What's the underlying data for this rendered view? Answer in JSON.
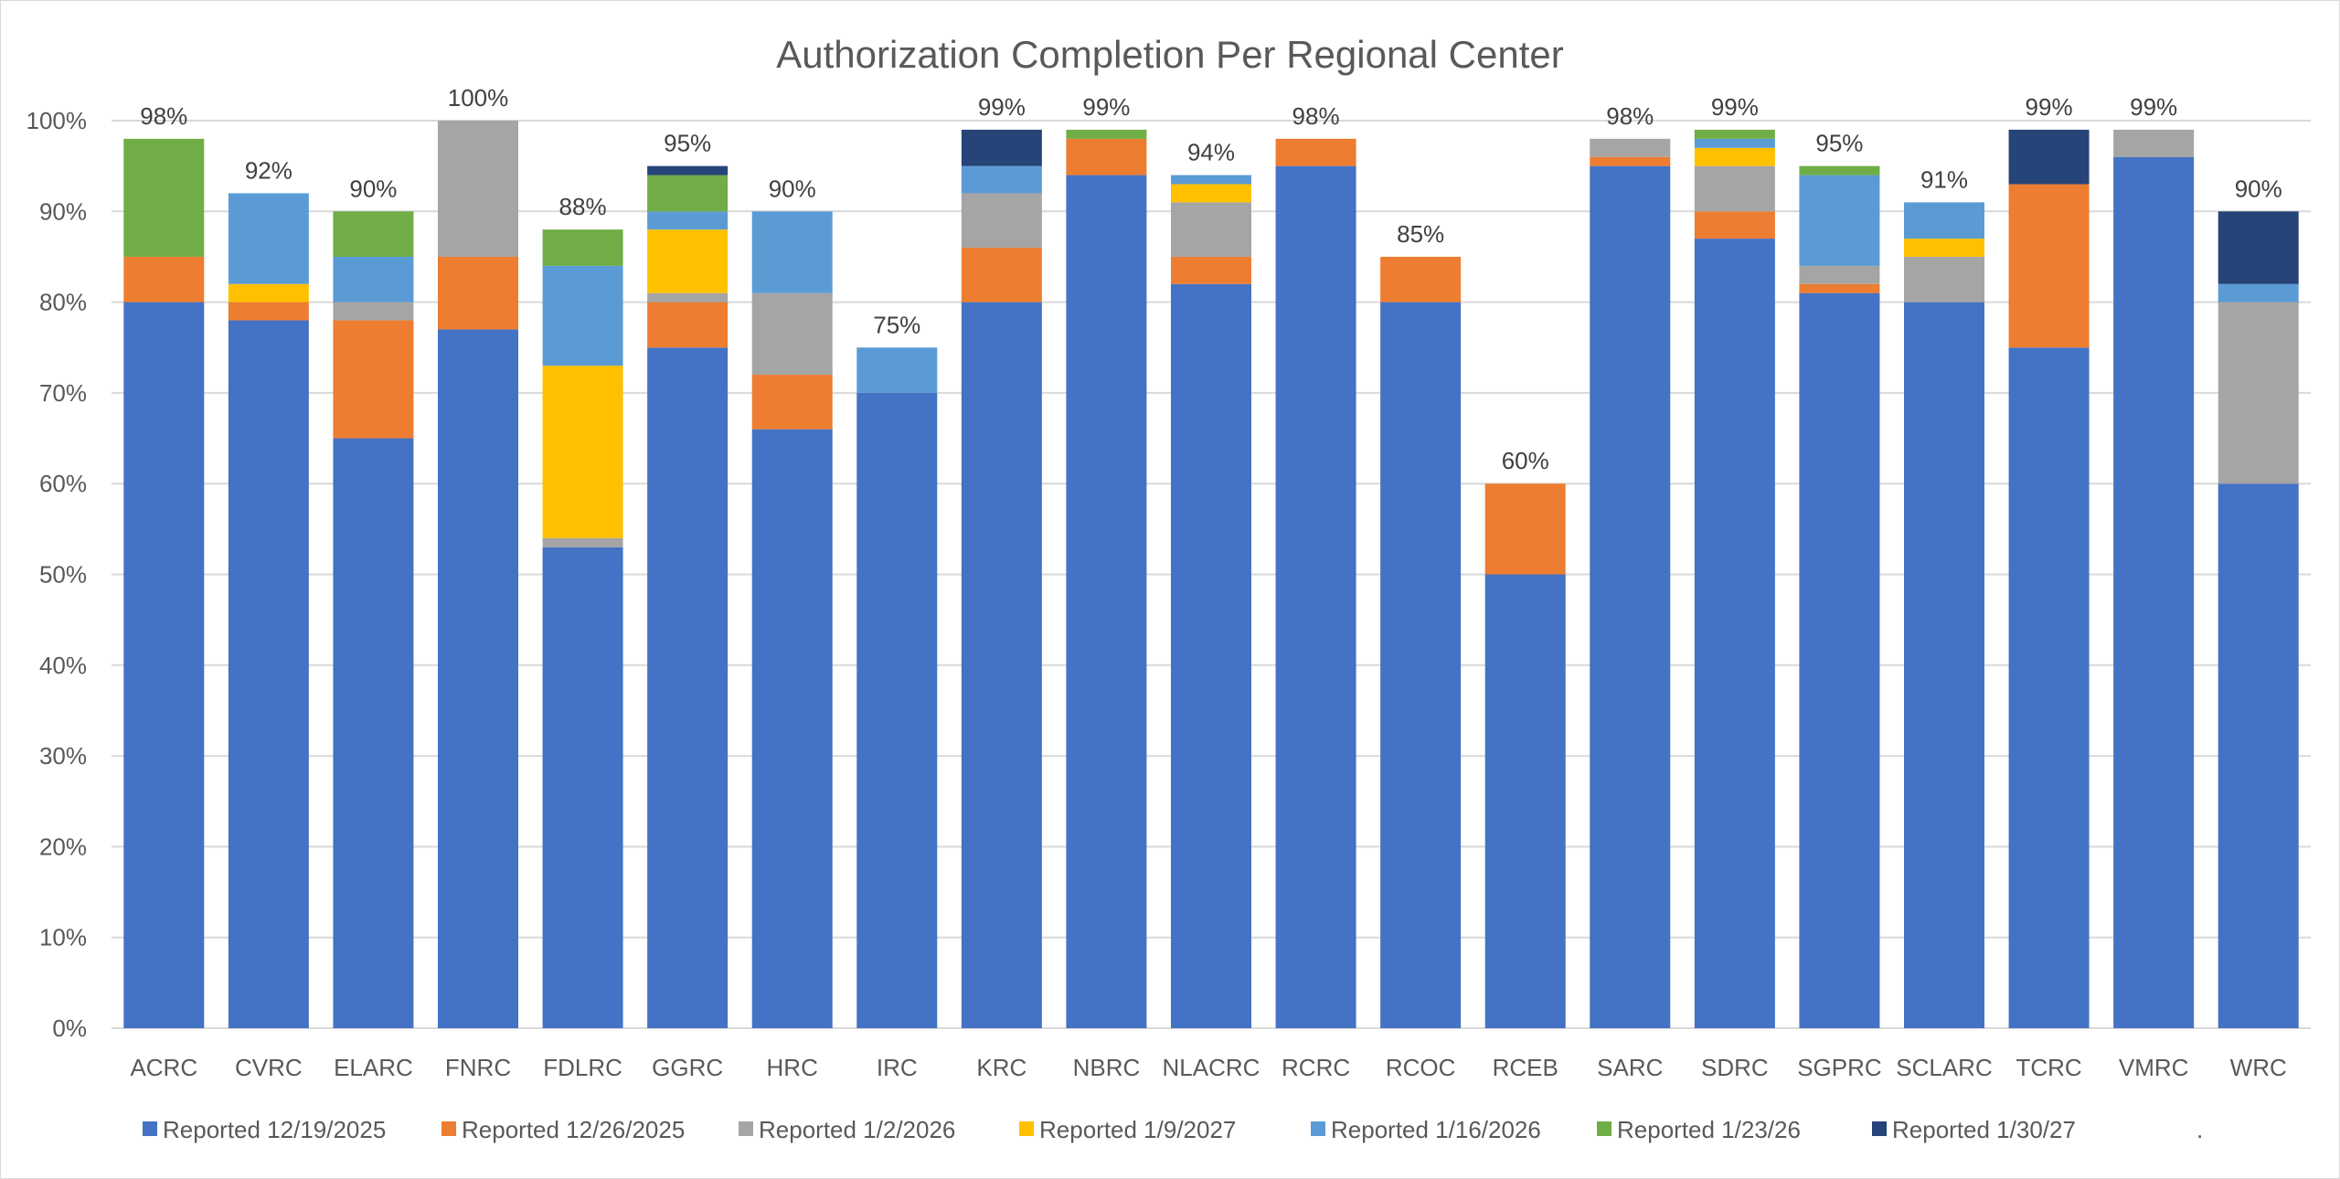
{
  "chart_data": {
    "type": "bar",
    "stacked": true,
    "title": "Authorization Completion Per Regional Center",
    "xlabel": "",
    "ylabel": "",
    "ylim": [
      0,
      100
    ],
    "ytick_labels": [
      "0%",
      "10%",
      "20%",
      "30%",
      "40%",
      "50%",
      "60%",
      "70%",
      "80%",
      "90%",
      "100%"
    ],
    "grid": true,
    "legend_position": "bottom",
    "legend_trailing_text": ".",
    "categories": [
      "ACRC",
      "CVRC",
      "ELARC",
      "FNRC",
      "FDLRC",
      "GGRC",
      "HRC",
      "IRC",
      "KRC",
      "NBRC",
      "NLACRC",
      "RCRC",
      "RCOC",
      "RCEB",
      "SARC",
      "SDRC",
      "SGPRC",
      "SCLARC",
      "TCRC",
      "VMRC",
      "WRC"
    ],
    "series": [
      {
        "name": "Reported 12/19/2025",
        "color": "#4472C4",
        "values": [
          80,
          78,
          65,
          77,
          53,
          75,
          66,
          70,
          80,
          94,
          82,
          95,
          80,
          50,
          95,
          87,
          81,
          80,
          75,
          96,
          60
        ]
      },
      {
        "name": "Reported 12/26/2025",
        "color": "#ED7D31",
        "values": [
          5,
          2,
          13,
          8,
          0,
          5,
          6,
          0,
          6,
          4,
          3,
          3,
          5,
          10,
          1,
          3,
          1,
          0,
          18,
          0,
          0
        ]
      },
      {
        "name": "Reported 1/2/2026",
        "color": "#A5A5A5",
        "values": [
          0,
          0,
          2,
          15,
          1,
          1,
          9,
          0,
          6,
          0,
          6,
          0,
          0,
          0,
          2,
          5,
          2,
          5,
          0,
          3,
          20
        ]
      },
      {
        "name": "Reported 1/9/2027",
        "color": "#FFC000",
        "values": [
          0,
          2,
          0,
          0,
          19,
          7,
          0,
          0,
          0,
          0,
          2,
          0,
          0,
          0,
          0,
          2,
          0,
          2,
          0,
          0,
          0
        ]
      },
      {
        "name": "Reported 1/16/2026",
        "color": "#5B9BD5",
        "values": [
          0,
          10,
          5,
          0,
          11,
          2,
          9,
          5,
          3,
          0,
          1,
          0,
          0,
          0,
          0,
          1,
          10,
          4,
          0,
          0,
          2
        ]
      },
      {
        "name": "Reported 1/23/26",
        "color": "#70AD47",
        "values": [
          13,
          0,
          5,
          0,
          4,
          4,
          0,
          0,
          0,
          1,
          0,
          0,
          0,
          0,
          0,
          1,
          1,
          0,
          0,
          0,
          0
        ]
      },
      {
        "name": "Reported 1/30/27",
        "color": "#264478",
        "values": [
          0,
          0,
          0,
          0,
          0,
          1,
          0,
          0,
          4,
          0,
          0,
          0,
          0,
          0,
          0,
          0,
          0,
          0,
          6,
          0,
          8
        ]
      }
    ],
    "data_labels": [
      "98%",
      "92%",
      "90%",
      "100%",
      "88%",
      "95%",
      "90%",
      "75%",
      "99%",
      "99%",
      "94%",
      "98%",
      "85%",
      "60%",
      "98%",
      "99%",
      "95%",
      "91%",
      "99%",
      "99%",
      "90%"
    ]
  }
}
